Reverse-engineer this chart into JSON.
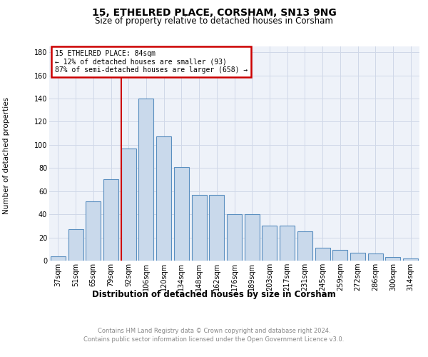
{
  "title1": "15, ETHELRED PLACE, CORSHAM, SN13 9NG",
  "title2": "Size of property relative to detached houses in Corsham",
  "xlabel": "Distribution of detached houses by size in Corsham",
  "ylabel": "Number of detached properties",
  "footer1": "Contains HM Land Registry data © Crown copyright and database right 2024.",
  "footer2": "Contains public sector information licensed under the Open Government Licence v3.0.",
  "bar_labels": [
    "37sqm",
    "51sqm",
    "65sqm",
    "79sqm",
    "92sqm",
    "106sqm",
    "120sqm",
    "134sqm",
    "148sqm",
    "162sqm",
    "176sqm",
    "189sqm",
    "203sqm",
    "217sqm",
    "231sqm",
    "245sqm",
    "259sqm",
    "272sqm",
    "286sqm",
    "300sqm",
    "314sqm"
  ],
  "bar_values": [
    4,
    27,
    51,
    70,
    97,
    140,
    107,
    81,
    57,
    57,
    40,
    40,
    30,
    30,
    25,
    11,
    9,
    7,
    6,
    3,
    2
  ],
  "bar_color": "#c9d9eb",
  "bar_edge_color": "#5a8fc0",
  "grid_color": "#d0d8e8",
  "property_line_label": "15 ETHELRED PLACE: 84sqm",
  "annotation_line1": "← 12% of detached houses are smaller (93)",
  "annotation_line2": "87% of semi-detached houses are larger (658) →",
  "annotation_box_color": "#ffffff",
  "annotation_box_edge_color": "#cc0000",
  "vline_color": "#cc0000",
  "ylim": [
    0,
    185
  ],
  "yticks": [
    0,
    20,
    40,
    60,
    80,
    100,
    120,
    140,
    160,
    180
  ],
  "background_color": "#eef2f9",
  "title1_fontsize": 10,
  "title2_fontsize": 8.5,
  "xlabel_fontsize": 8.5,
  "ylabel_fontsize": 7.5,
  "tick_fontsize": 7,
  "annotation_fontsize": 7,
  "footer_fontsize": 6,
  "footer_color": "#888888"
}
